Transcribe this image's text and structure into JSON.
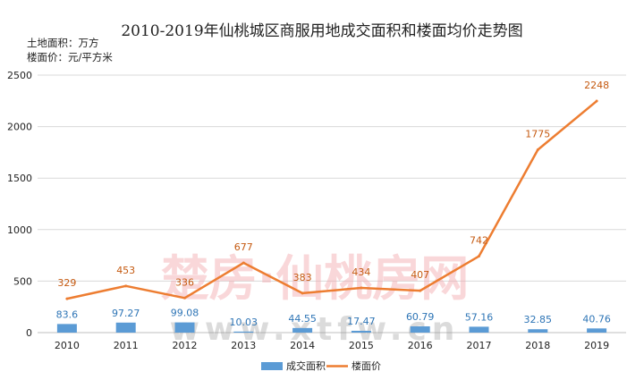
{
  "chart_data": {
    "type": "bar+line",
    "title": "2010-2019年仙桃城区商服用地成交面积和楼面均价走势图",
    "units": [
      "土地面积：万方",
      "楼面价：元/平方米"
    ],
    "categories": [
      "2010",
      "2011",
      "2012",
      "2013",
      "2014",
      "2015",
      "2016",
      "2017",
      "2018",
      "2019"
    ],
    "ylim": [
      0,
      2500
    ],
    "yticks": [
      "0",
      "500",
      "1000",
      "1500",
      "2000",
      "2500"
    ],
    "grid": true,
    "legend_position": "bottom",
    "series": [
      {
        "name": "成交面积",
        "type": "bar",
        "color": "#5b9bd5",
        "values": [
          83.6,
          97.27,
          99.08,
          10.03,
          44.55,
          17.47,
          60.79,
          57.16,
          32.85,
          40.76
        ],
        "labels": [
          "83.6",
          "97.27",
          "99.08",
          "10.03",
          "44.55",
          "17.47",
          "60.79",
          "57.16",
          "32.85",
          "40.76"
        ],
        "label_color": "#2e75b6"
      },
      {
        "name": "楼面价",
        "type": "line",
        "color": "#ed7d31",
        "values": [
          329,
          453,
          336,
          677,
          383,
          434,
          407,
          742,
          1775,
          2248
        ],
        "labels": [
          "329",
          "453",
          "336",
          "677",
          "383",
          "434",
          "407",
          "742",
          "1775",
          "2248"
        ],
        "label_color": "#c55a11"
      }
    ],
    "watermark": [
      "楚房·仙桃房网",
      "www.xtfw.cn"
    ]
  }
}
